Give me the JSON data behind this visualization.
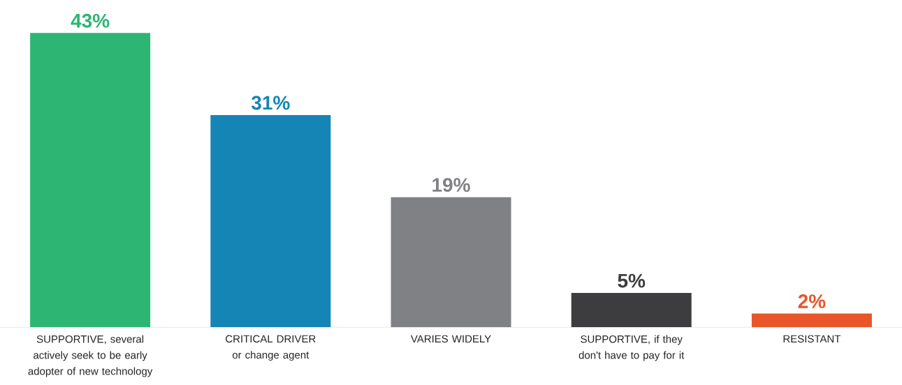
{
  "chart_data": {
    "type": "bar",
    "categories": [
      "SUPPORTIVE, several actively seek to be early adopter of new technology",
      "CRITICAL DRIVER or change agent",
      "VARIES WIDELY",
      "SUPPORTIVE, if they don't have to pay for it",
      "RESISTANT"
    ],
    "values": [
      43,
      31,
      19,
      5,
      2
    ],
    "colors": [
      "#2db673",
      "#1585b5",
      "#808184",
      "#3d3c3f",
      "#e8562a"
    ],
    "value_labels": [
      "43%",
      "31%",
      "19%",
      "5%",
      "2%"
    ]
  }
}
